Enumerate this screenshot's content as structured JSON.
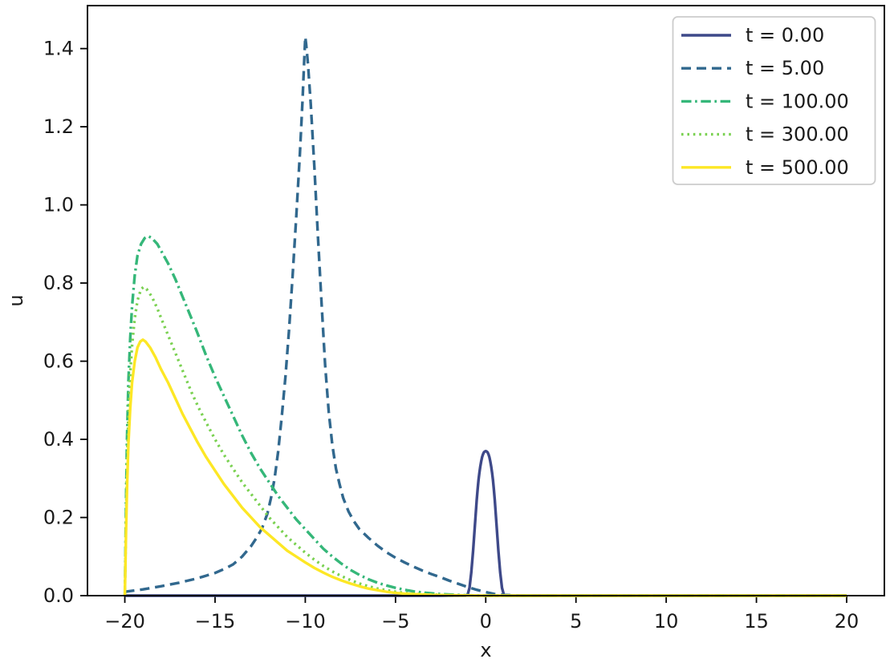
{
  "figure": {
    "background": "#ffffff",
    "text_color": "#1a1a1a",
    "spine_color": "#000000"
  },
  "chart_data": {
    "type": "line",
    "title": "",
    "xlabel": "x",
    "ylabel": "u",
    "xlim": [
      -22.07,
      22.09
    ],
    "ylim": [
      0,
      1.51
    ],
    "grid": false,
    "legend_position": "upper right",
    "legend_border_color": "#cccccc",
    "x_ticks": [
      {
        "v": -20,
        "label": "−20"
      },
      {
        "v": -15,
        "label": "−15"
      },
      {
        "v": -10,
        "label": "−10"
      },
      {
        "v": -5,
        "label": "−5"
      },
      {
        "v": 0,
        "label": "0"
      },
      {
        "v": 5,
        "label": "5"
      },
      {
        "v": 10,
        "label": "10"
      },
      {
        "v": 15,
        "label": "15"
      },
      {
        "v": 20,
        "label": "20"
      }
    ],
    "y_ticks": [
      {
        "v": 0.0,
        "label": "0.0"
      },
      {
        "v": 0.2,
        "label": "0.2"
      },
      {
        "v": 0.4,
        "label": "0.4"
      },
      {
        "v": 0.6,
        "label": "0.6"
      },
      {
        "v": 0.8,
        "label": "0.8"
      },
      {
        "v": 1.0,
        "label": "1.0"
      },
      {
        "v": 1.2,
        "label": "1.2"
      },
      {
        "v": 1.4,
        "label": "1.4"
      }
    ],
    "series": [
      {
        "name": "t0",
        "label": "t = 0.00",
        "color": "#3e4989",
        "style": "solid",
        "peak": {
          "x": 0.0,
          "u": 0.37
        },
        "points": [
          [
            -20,
            0
          ],
          [
            -1.1,
            0
          ],
          [
            -1.0,
            0.003
          ],
          [
            -0.9,
            0.02
          ],
          [
            -0.8,
            0.06
          ],
          [
            -0.7,
            0.115
          ],
          [
            -0.6,
            0.18
          ],
          [
            -0.5,
            0.245
          ],
          [
            -0.45,
            0.272
          ],
          [
            -0.4,
            0.296
          ],
          [
            -0.35,
            0.315
          ],
          [
            -0.3,
            0.331
          ],
          [
            -0.25,
            0.344
          ],
          [
            -0.2,
            0.355
          ],
          [
            -0.15,
            0.362
          ],
          [
            -0.1,
            0.367
          ],
          [
            -0.05,
            0.369
          ],
          [
            0,
            0.37
          ],
          [
            0.05,
            0.369
          ],
          [
            0.1,
            0.367
          ],
          [
            0.15,
            0.362
          ],
          [
            0.2,
            0.355
          ],
          [
            0.25,
            0.344
          ],
          [
            0.3,
            0.331
          ],
          [
            0.35,
            0.315
          ],
          [
            0.4,
            0.296
          ],
          [
            0.45,
            0.272
          ],
          [
            0.5,
            0.245
          ],
          [
            0.6,
            0.18
          ],
          [
            0.7,
            0.115
          ],
          [
            0.8,
            0.06
          ],
          [
            0.9,
            0.02
          ],
          [
            1.0,
            0.003
          ],
          [
            1.1,
            0
          ],
          [
            20,
            0
          ]
        ]
      },
      {
        "name": "t5",
        "label": "t = 5.00",
        "color": "#31688e",
        "style": "dashed",
        "peak": {
          "x": -10.0,
          "u": 1.43
        },
        "points": [
          [
            -20,
            0.01
          ],
          [
            -19,
            0.016
          ],
          [
            -18,
            0.024
          ],
          [
            -17,
            0.033
          ],
          [
            -16,
            0.044
          ],
          [
            -15,
            0.058
          ],
          [
            -14.5,
            0.068
          ],
          [
            -14,
            0.08
          ],
          [
            -13.5,
            0.1
          ],
          [
            -13,
            0.127
          ],
          [
            -12.7,
            0.148
          ],
          [
            -12.4,
            0.172
          ],
          [
            -12.1,
            0.21
          ],
          [
            -11.9,
            0.25
          ],
          [
            -11.7,
            0.3
          ],
          [
            -11.5,
            0.37
          ],
          [
            -11.3,
            0.46
          ],
          [
            -11.1,
            0.56
          ],
          [
            -10.9,
            0.68
          ],
          [
            -10.7,
            0.82
          ],
          [
            -10.5,
            0.97
          ],
          [
            -10.3,
            1.13
          ],
          [
            -10.15,
            1.27
          ],
          [
            -10.05,
            1.38
          ],
          [
            -10,
            1.43
          ],
          [
            -9.95,
            1.41
          ],
          [
            -9.85,
            1.36
          ],
          [
            -9.7,
            1.26
          ],
          [
            -9.5,
            1.1
          ],
          [
            -9.3,
            0.92
          ],
          [
            -9.1,
            0.75
          ],
          [
            -8.9,
            0.59
          ],
          [
            -8.7,
            0.47
          ],
          [
            -8.5,
            0.385
          ],
          [
            -8.3,
            0.325
          ],
          [
            -8.1,
            0.285
          ],
          [
            -7.9,
            0.25
          ],
          [
            -7.6,
            0.215
          ],
          [
            -7.3,
            0.19
          ],
          [
            -7,
            0.17
          ],
          [
            -6.5,
            0.148
          ],
          [
            -6,
            0.128
          ],
          [
            -5.5,
            0.111
          ],
          [
            -5,
            0.097
          ],
          [
            -4.5,
            0.085
          ],
          [
            -4,
            0.074
          ],
          [
            -3.5,
            0.064
          ],
          [
            -3,
            0.055
          ],
          [
            -2.5,
            0.047
          ],
          [
            -2,
            0.038
          ],
          [
            -1.5,
            0.03
          ],
          [
            -1,
            0.022
          ],
          [
            -0.5,
            0.015
          ],
          [
            0,
            0.009
          ],
          [
            0.5,
            0.004
          ],
          [
            1,
            0.002
          ],
          [
            1.5,
            0.001
          ],
          [
            2,
            0
          ],
          [
            20,
            0
          ]
        ]
      },
      {
        "name": "t100",
        "label": "t = 100.00",
        "color": "#35b779",
        "style": "dashdot",
        "peak": {
          "x": -18.7,
          "u": 0.92
        },
        "points": [
          [
            -20,
            0
          ],
          [
            -19.97,
            0.1
          ],
          [
            -19.93,
            0.25
          ],
          [
            -19.88,
            0.4
          ],
          [
            -19.8,
            0.55
          ],
          [
            -19.7,
            0.66
          ],
          [
            -19.6,
            0.74
          ],
          [
            -19.45,
            0.82
          ],
          [
            -19.3,
            0.87
          ],
          [
            -19.1,
            0.9
          ],
          [
            -18.9,
            0.915
          ],
          [
            -18.7,
            0.92
          ],
          [
            -18.5,
            0.915
          ],
          [
            -18.2,
            0.9
          ],
          [
            -17.9,
            0.875
          ],
          [
            -17.6,
            0.85
          ],
          [
            -17.2,
            0.81
          ],
          [
            -16.8,
            0.765
          ],
          [
            -16.4,
            0.72
          ],
          [
            -16,
            0.675
          ],
          [
            -15.5,
            0.615
          ],
          [
            -15,
            0.56
          ],
          [
            -14.5,
            0.51
          ],
          [
            -14,
            0.46
          ],
          [
            -13.5,
            0.41
          ],
          [
            -13,
            0.365
          ],
          [
            -12.5,
            0.325
          ],
          [
            -12,
            0.29
          ],
          [
            -11.5,
            0.255
          ],
          [
            -11,
            0.225
          ],
          [
            -10.5,
            0.195
          ],
          [
            -10,
            0.17
          ],
          [
            -9.5,
            0.145
          ],
          [
            -9,
            0.12
          ],
          [
            -8.5,
            0.1
          ],
          [
            -8,
            0.082
          ],
          [
            -7.5,
            0.066
          ],
          [
            -7,
            0.053
          ],
          [
            -6.5,
            0.042
          ],
          [
            -6,
            0.033
          ],
          [
            -5.5,
            0.026
          ],
          [
            -5,
            0.02
          ],
          [
            -4.5,
            0.015
          ],
          [
            -4,
            0.011
          ],
          [
            -3.5,
            0.008
          ],
          [
            -3,
            0.006
          ],
          [
            -2.5,
            0.004
          ],
          [
            -2,
            0.003
          ],
          [
            -1.5,
            0.002
          ],
          [
            -1,
            0.001
          ],
          [
            0,
            0
          ],
          [
            20,
            0
          ]
        ]
      },
      {
        "name": "t300",
        "label": "t = 300.00",
        "color": "#7ad151",
        "style": "dotted",
        "peak": {
          "x": -18.95,
          "u": 0.79
        },
        "points": [
          [
            -20,
            0
          ],
          [
            -19.97,
            0.08
          ],
          [
            -19.93,
            0.2
          ],
          [
            -19.87,
            0.35
          ],
          [
            -19.8,
            0.47
          ],
          [
            -19.7,
            0.57
          ],
          [
            -19.6,
            0.64
          ],
          [
            -19.45,
            0.71
          ],
          [
            -19.3,
            0.755
          ],
          [
            -19.1,
            0.785
          ],
          [
            -18.95,
            0.79
          ],
          [
            -18.8,
            0.785
          ],
          [
            -18.5,
            0.765
          ],
          [
            -18.2,
            0.735
          ],
          [
            -17.9,
            0.7
          ],
          [
            -17.5,
            0.655
          ],
          [
            -17.1,
            0.61
          ],
          [
            -16.7,
            0.565
          ],
          [
            -16.3,
            0.52
          ],
          [
            -15.9,
            0.48
          ],
          [
            -15.4,
            0.435
          ],
          [
            -15,
            0.4
          ],
          [
            -14.5,
            0.36
          ],
          [
            -14,
            0.325
          ],
          [
            -13.5,
            0.29
          ],
          [
            -13,
            0.26
          ],
          [
            -12.5,
            0.23
          ],
          [
            -12,
            0.2
          ],
          [
            -11.5,
            0.175
          ],
          [
            -11,
            0.15
          ],
          [
            -10.5,
            0.13
          ],
          [
            -10,
            0.11
          ],
          [
            -9.5,
            0.092
          ],
          [
            -9,
            0.076
          ],
          [
            -8.5,
            0.062
          ],
          [
            -8,
            0.05
          ],
          [
            -7.5,
            0.04
          ],
          [
            -7,
            0.031
          ],
          [
            -6.5,
            0.024
          ],
          [
            -6,
            0.018
          ],
          [
            -5.5,
            0.014
          ],
          [
            -5,
            0.01
          ],
          [
            -4.5,
            0.007
          ],
          [
            -4,
            0.005
          ],
          [
            -3.5,
            0.004
          ],
          [
            -3,
            0.003
          ],
          [
            -2.5,
            0.002
          ],
          [
            -2,
            0.001
          ],
          [
            -1,
            0.0005
          ],
          [
            0,
            0
          ],
          [
            20,
            0
          ]
        ]
      },
      {
        "name": "t500",
        "label": "t = 500.00",
        "color": "#fde725",
        "style": "solid",
        "peak": {
          "x": -19.0,
          "u": 0.655
        },
        "points": [
          [
            -20,
            0
          ],
          [
            -19.97,
            0.07
          ],
          [
            -19.93,
            0.17
          ],
          [
            -19.87,
            0.29
          ],
          [
            -19.8,
            0.39
          ],
          [
            -19.7,
            0.48
          ],
          [
            -19.6,
            0.545
          ],
          [
            -19.45,
            0.6
          ],
          [
            -19.3,
            0.635
          ],
          [
            -19.15,
            0.65
          ],
          [
            -19.0,
            0.655
          ],
          [
            -18.85,
            0.65
          ],
          [
            -18.6,
            0.635
          ],
          [
            -18.3,
            0.61
          ],
          [
            -18,
            0.58
          ],
          [
            -17.6,
            0.545
          ],
          [
            -17.2,
            0.505
          ],
          [
            -16.8,
            0.465
          ],
          [
            -16.4,
            0.43
          ],
          [
            -16,
            0.395
          ],
          [
            -15.5,
            0.355
          ],
          [
            -15,
            0.32
          ],
          [
            -14.5,
            0.285
          ],
          [
            -14,
            0.255
          ],
          [
            -13.5,
            0.225
          ],
          [
            -13,
            0.2
          ],
          [
            -12.5,
            0.175
          ],
          [
            -12,
            0.155
          ],
          [
            -11.5,
            0.135
          ],
          [
            -11,
            0.115
          ],
          [
            -10.5,
            0.1
          ],
          [
            -10,
            0.085
          ],
          [
            -9.5,
            0.071
          ],
          [
            -9,
            0.059
          ],
          [
            -8.5,
            0.048
          ],
          [
            -8,
            0.039
          ],
          [
            -7.5,
            0.031
          ],
          [
            -7,
            0.024
          ],
          [
            -6.5,
            0.018
          ],
          [
            -6,
            0.014
          ],
          [
            -5.5,
            0.01
          ],
          [
            -5,
            0.007
          ],
          [
            -4.5,
            0.005
          ],
          [
            -4,
            0.004
          ],
          [
            -3.5,
            0.003
          ],
          [
            -3,
            0.002
          ],
          [
            -2,
            0.001
          ],
          [
            -1,
            0.0005
          ],
          [
            0,
            0
          ],
          [
            20,
            0
          ]
        ]
      }
    ]
  }
}
